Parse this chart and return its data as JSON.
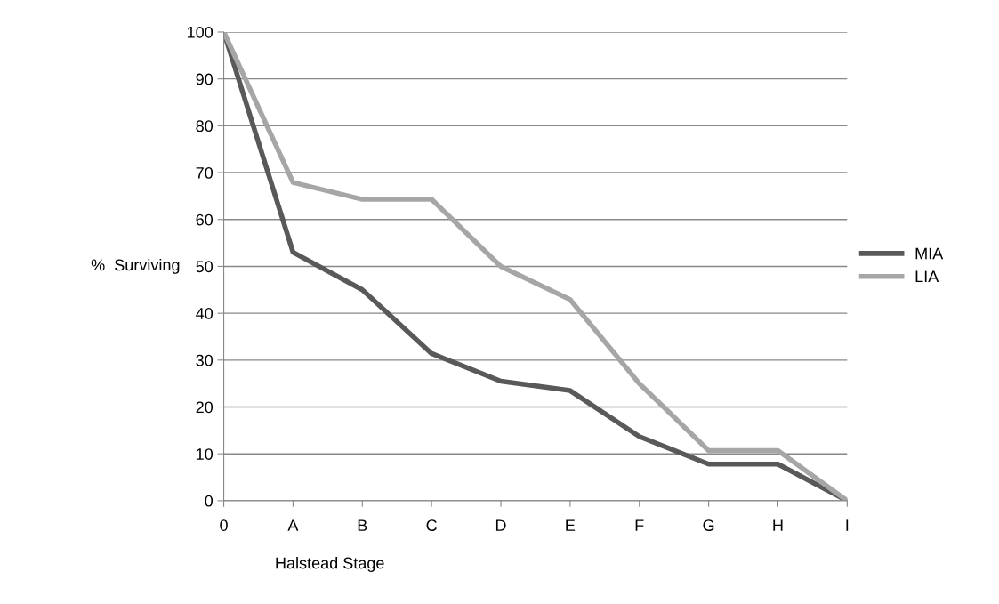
{
  "chart_data": {
    "type": "line",
    "xlabel": "Halstead Stage",
    "ylabel": "%  Surviving",
    "categories": [
      "0",
      "A",
      "B",
      "C",
      "D",
      "E",
      "F",
      "G",
      "H",
      "I"
    ],
    "series": [
      {
        "name": "MIA",
        "color": "#595959",
        "values": [
          100,
          53,
          45,
          31.4,
          25.5,
          23.5,
          13.7,
          7.8,
          7.8,
          0
        ]
      },
      {
        "name": "LIA",
        "color": "#a6a6a6",
        "values": [
          100,
          67.9,
          64.3,
          64.3,
          50,
          42.9,
          25,
          10.7,
          10.7,
          0
        ]
      }
    ],
    "ylim": [
      0,
      100
    ],
    "yticks": [
      0,
      10,
      20,
      30,
      40,
      50,
      60,
      70,
      80,
      90,
      100
    ],
    "grid": "y",
    "legend": "right",
    "marker": "none",
    "line_style": "solid"
  }
}
